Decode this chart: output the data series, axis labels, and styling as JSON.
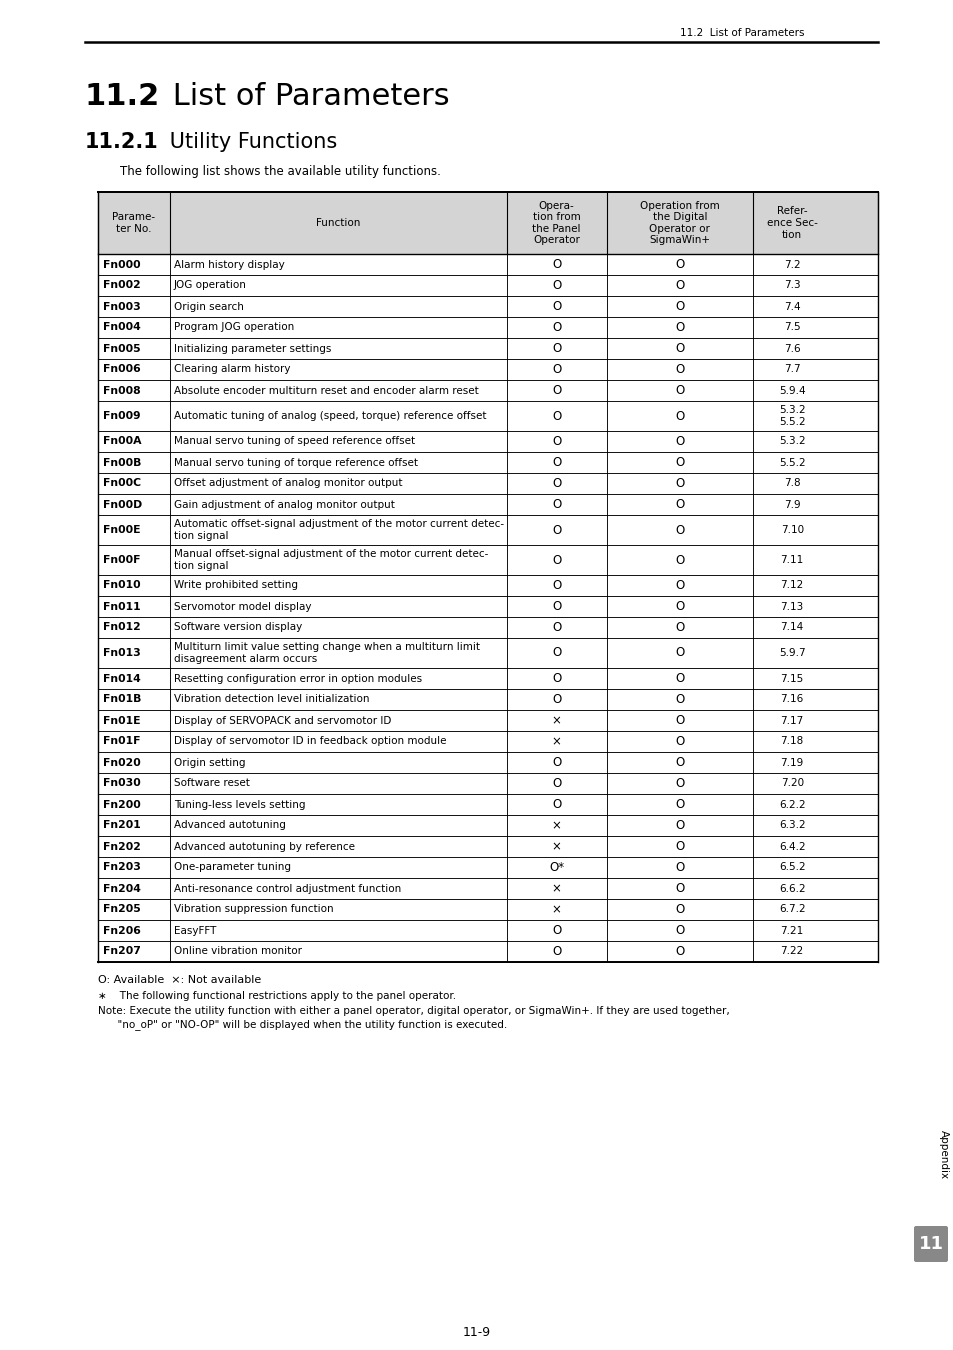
{
  "page_header": "11.2  List of Parameters",
  "page_footer": "11-9",
  "h1_bold": "11.2",
  "h1_normal": " List of Parameters",
  "h2_bold": "11.2.1",
  "h2_normal": " Utility Functions",
  "intro_text": "The following list shows the available utility functions.",
  "col_headers": [
    "Parame-\nter No.",
    "Function",
    "Opera-\ntion from\nthe Panel\nOperator",
    "Operation from\nthe Digital\nOperator or\nSigmaWin+",
    "Refer-\nence Sec-\ntion"
  ],
  "col_props": [
    0.092,
    0.432,
    0.128,
    0.188,
    0.1
  ],
  "rows": [
    [
      "Fn000",
      "Alarm history display",
      "O",
      "O",
      "7.2"
    ],
    [
      "Fn002",
      "JOG operation",
      "O",
      "O",
      "7.3"
    ],
    [
      "Fn003",
      "Origin search",
      "O",
      "O",
      "7.4"
    ],
    [
      "Fn004",
      "Program JOG operation",
      "O",
      "O",
      "7.5"
    ],
    [
      "Fn005",
      "Initializing parameter settings",
      "O",
      "O",
      "7.6"
    ],
    [
      "Fn006",
      "Clearing alarm history",
      "O",
      "O",
      "7.7"
    ],
    [
      "Fn008",
      "Absolute encoder multiturn reset and encoder alarm reset",
      "O",
      "O",
      "5.9.4"
    ],
    [
      "Fn009",
      "Automatic tuning of analog (speed, torque) reference offset",
      "O",
      "O",
      "5.3.2\n5.5.2"
    ],
    [
      "Fn00A",
      "Manual servo tuning of speed reference offset",
      "O",
      "O",
      "5.3.2"
    ],
    [
      "Fn00B",
      "Manual servo tuning of torque reference offset",
      "O",
      "O",
      "5.5.2"
    ],
    [
      "Fn00C",
      "Offset adjustment of analog monitor output",
      "O",
      "O",
      "7.8"
    ],
    [
      "Fn00D",
      "Gain adjustment of analog monitor output",
      "O",
      "O",
      "7.9"
    ],
    [
      "Fn00E",
      "Automatic offset-signal adjustment of the motor current detec-\ntion signal",
      "O",
      "O",
      "7.10"
    ],
    [
      "Fn00F",
      "Manual offset-signal adjustment of the motor current detec-\ntion signal",
      "O",
      "O",
      "7.11"
    ],
    [
      "Fn010",
      "Write prohibited setting",
      "O",
      "O",
      "7.12"
    ],
    [
      "Fn011",
      "Servomotor model display",
      "O",
      "O",
      "7.13"
    ],
    [
      "Fn012",
      "Software version display",
      "O",
      "O",
      "7.14"
    ],
    [
      "Fn013",
      "Multiturn limit value setting change when a multiturn limit\ndisagreement alarm occurs",
      "O",
      "O",
      "5.9.7"
    ],
    [
      "Fn014",
      "Resetting configuration error in option modules",
      "O",
      "O",
      "7.15"
    ],
    [
      "Fn01B",
      "Vibration detection level initialization",
      "O",
      "O",
      "7.16"
    ],
    [
      "Fn01E",
      "Display of SERVOPACK and servomotor ID",
      "×",
      "O",
      "7.17"
    ],
    [
      "Fn01F",
      "Display of servomotor ID in feedback option module",
      "×",
      "O",
      "7.18"
    ],
    [
      "Fn020",
      "Origin setting",
      "O",
      "O",
      "7.19"
    ],
    [
      "Fn030",
      "Software reset",
      "O",
      "O",
      "7.20"
    ],
    [
      "Fn200",
      "Tuning-less levels setting",
      "O",
      "O",
      "6.2.2"
    ],
    [
      "Fn201",
      "Advanced autotuning",
      "×",
      "O",
      "6.3.2"
    ],
    [
      "Fn202",
      "Advanced autotuning by reference",
      "×",
      "O",
      "6.4.2"
    ],
    [
      "Fn203",
      "One-parameter tuning",
      "O*",
      "O",
      "6.5.2"
    ],
    [
      "Fn204",
      "Anti-resonance control adjustment function",
      "×",
      "O",
      "6.6.2"
    ],
    [
      "Fn205",
      "Vibration suppression function",
      "×",
      "O",
      "6.7.2"
    ],
    [
      "Fn206",
      "EasyFFT",
      "O",
      "O",
      "7.21"
    ],
    [
      "Fn207",
      "Online vibration monitor",
      "O",
      "O",
      "7.22"
    ]
  ],
  "fn1": "O: Available  ×: Not available",
  "fn2": "∗    The following functional restrictions apply to the panel operator.",
  "fn3a": "Note: Execute the utility function with either a panel operator, digital operator, or SigmaWin+. If they are used together,",
  "fn3b": "      \"no_oP\" or \"NO-OP\" will be displayed when the utility function is executed.",
  "sidebar_label": "Appendix",
  "sidebar_num": "11",
  "header_bg": "#d4d4d4"
}
